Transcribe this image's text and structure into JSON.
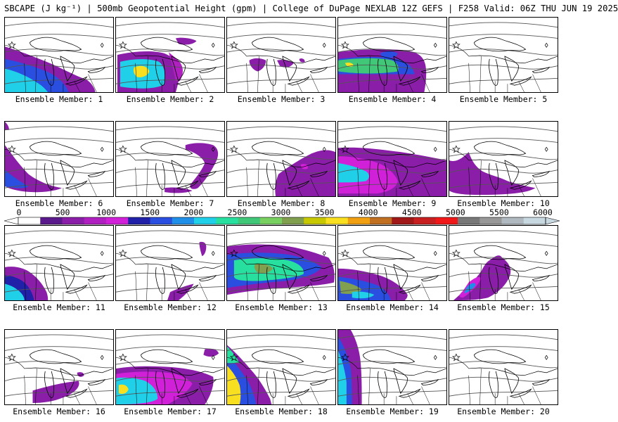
{
  "title": "SBCAPE (J kg⁻¹) | 500mb Geopotential Height (gpm) | College of DuPage NEXLAB 12Z GEFS | F258 Valid: 06Z THU JUN 19 2025",
  "member_label_prefix": "Ensemble Member: ",
  "members": [
    "1",
    "2",
    "3",
    "4",
    "5",
    "6",
    "7",
    "8",
    "9",
    "10",
    "11",
    "12",
    "13",
    "14",
    "15",
    "16",
    "17",
    "18",
    "19",
    "20"
  ],
  "colorbar": {
    "labels": [
      "0",
      "500",
      "1000",
      "1500",
      "2000",
      "2500",
      "3000",
      "3500",
      "4000",
      "4500",
      "5000",
      "5500",
      "6000"
    ],
    "min": 0,
    "max": 6000,
    "step": 250,
    "colors": [
      "#ffffff",
      "#5a1a8c",
      "#8a1ea8",
      "#b020c0",
      "#d020d8",
      "#2020a8",
      "#2a4ee0",
      "#1f8fe8",
      "#20d0e8",
      "#27e0a0",
      "#40c878",
      "#78d060",
      "#80a050",
      "#c8c800",
      "#f8e020",
      "#f0a010",
      "#c07020",
      "#a01818",
      "#c82020",
      "#f01818",
      "#787878",
      "#989898",
      "#b0b8c0",
      "#c8d8e0"
    ]
  },
  "colors": {
    "contour": "#555555",
    "boundary": "#000000"
  },
  "map_icons": [
    "star-icon",
    "diamond-icon"
  ]
}
